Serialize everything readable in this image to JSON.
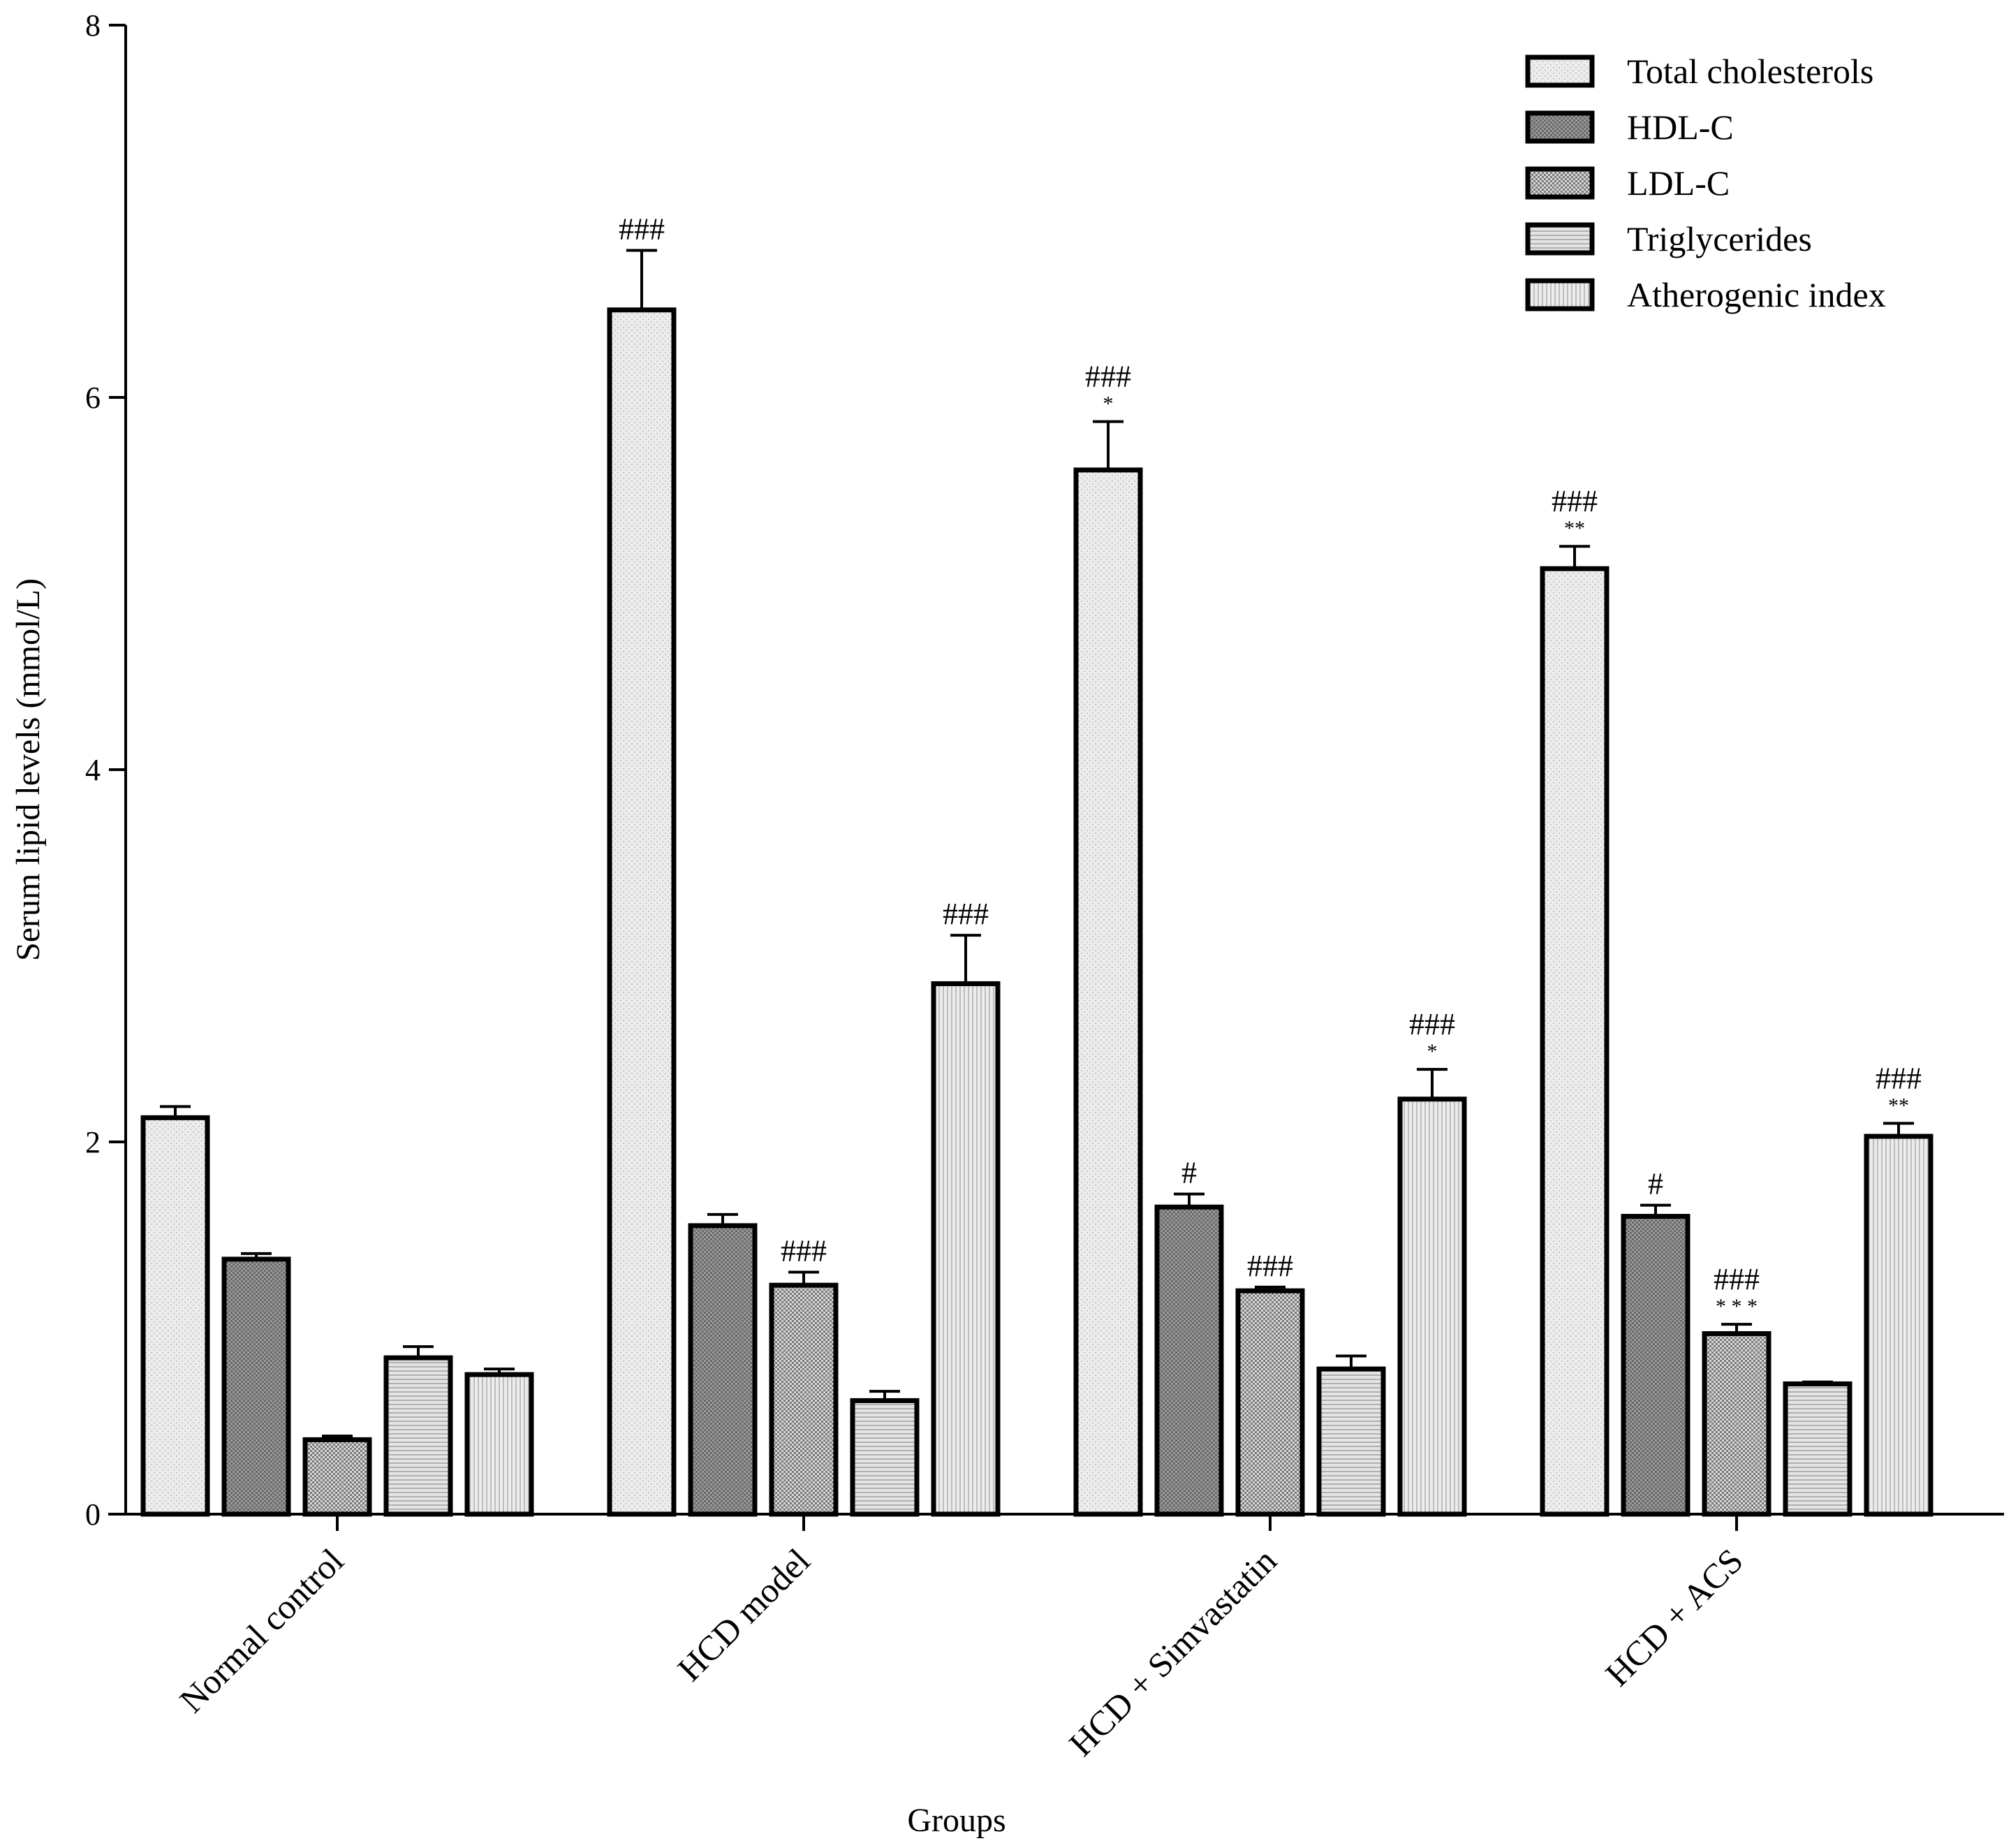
{
  "chart_data": {
    "type": "bar",
    "title": "",
    "xlabel": "Groups",
    "ylabel": "Serum lipid levels  (mmol/L)",
    "ylim": [
      0,
      8
    ],
    "yticks": [
      0,
      2,
      4,
      6,
      8
    ],
    "grid": false,
    "legend_position": "top-right",
    "categories": [
      "Normal control",
      "HCD model",
      "HCD + Simvastatin",
      "HCD + ACS"
    ],
    "series": [
      {
        "name": "Total cholesterols",
        "values": [
          2.13,
          6.47,
          5.61,
          5.08
        ],
        "errors": [
          0.06,
          0.32,
          0.26,
          0.12
        ],
        "annotations": [
          "",
          "###",
          "###|*",
          "###|**"
        ]
      },
      {
        "name": "HDL-C",
        "values": [
          1.37,
          1.55,
          1.65,
          1.6
        ],
        "errors": [
          0.03,
          0.06,
          0.07,
          0.06
        ],
        "annotations": [
          "",
          "",
          "#",
          "#"
        ]
      },
      {
        "name": "LDL-C",
        "values": [
          0.4,
          1.23,
          1.2,
          0.97
        ],
        "errors": [
          0.02,
          0.07,
          0.02,
          0.05
        ],
        "annotations": [
          "",
          "###",
          "###",
          "###|* * *"
        ]
      },
      {
        "name": "Triglycerides",
        "values": [
          0.84,
          0.61,
          0.78,
          0.7
        ],
        "errors": [
          0.06,
          0.05,
          0.07,
          0.01
        ],
        "annotations": [
          "",
          "",
          "",
          ""
        ]
      },
      {
        "name": "Atherogenic index",
        "values": [
          0.75,
          2.85,
          2.23,
          2.03
        ],
        "errors": [
          0.03,
          0.26,
          0.16,
          0.07
        ],
        "annotations": [
          "",
          "###",
          "###|*",
          "###|**"
        ]
      }
    ]
  },
  "style": {
    "bar_fills": [
      "#e6e6e6",
      "#8f8f8f",
      "#b5b5b5",
      "#d0d0d0",
      "#dcdcdc"
    ],
    "axis_color": "#000000"
  }
}
